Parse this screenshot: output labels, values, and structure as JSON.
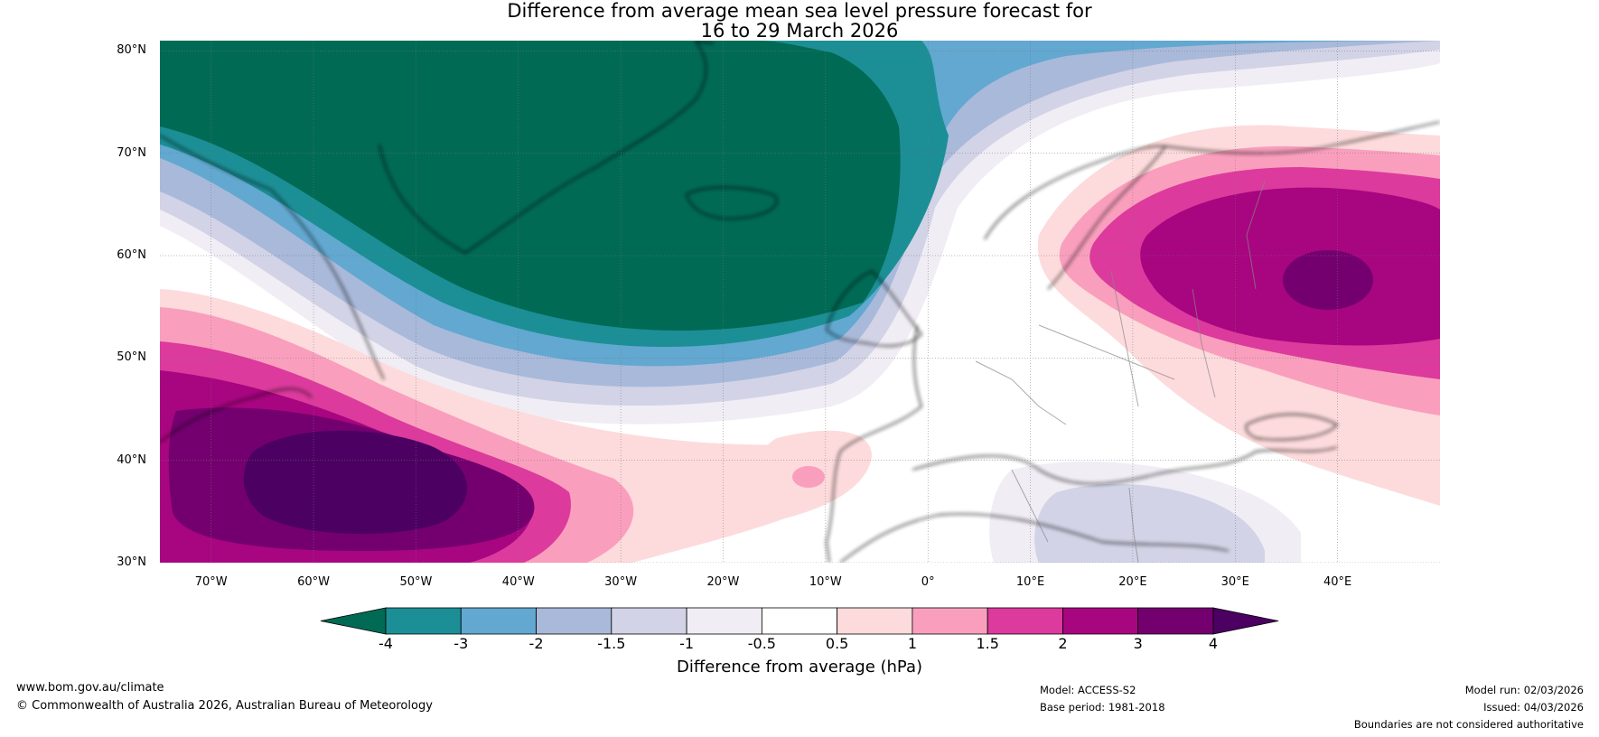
{
  "title": {
    "line1": "Difference from average mean sea level pressure forecast for",
    "line2": "16 to 29 March 2026"
  },
  "axes": {
    "lat_labels": [
      "80°N",
      "70°N",
      "60°N",
      "50°N",
      "40°N",
      "30°N"
    ],
    "lat_values": [
      80,
      70,
      60,
      50,
      40,
      30
    ],
    "lon_labels": [
      "70°W",
      "60°W",
      "50°W",
      "40°W",
      "30°W",
      "20°W",
      "10°W",
      "0°",
      "10°E",
      "20°E",
      "30°E",
      "40°E"
    ],
    "lon_values": [
      -70,
      -60,
      -50,
      -40,
      -30,
      -20,
      -10,
      0,
      10,
      20,
      30,
      40
    ],
    "lon_range": [
      -75,
      50
    ],
    "lat_range": [
      30,
      81
    ]
  },
  "colorbar": {
    "ticks": [
      "-4",
      "-3",
      "-2",
      "-1.5",
      "-1",
      "-0.5",
      "0.5",
      "1",
      "1.5",
      "2",
      "3",
      "4"
    ],
    "colors": [
      "#006a55",
      "#1b8f95",
      "#62a8d0",
      "#a9b9da",
      "#d2d3e6",
      "#f0edf5",
      "#ffffff",
      "#fddbdc",
      "#f99fbd",
      "#dc3a9c",
      "#a80580",
      "#740070",
      "#4b0062"
    ],
    "label": "Difference from average (hPa)"
  },
  "footer": {
    "website": "www.bom.gov.au/climate",
    "copyright": "© Commonwealth of Australia 2026, Australian Bureau of Meteorology",
    "model": "Model: ACCESS-S2",
    "base_period": "Base period: 1981-2018",
    "model_run": "Model run: 02/03/2026",
    "issued": "Issued: 04/03/2026",
    "disclaimer": "Boundaries are not considered authoritative"
  }
}
